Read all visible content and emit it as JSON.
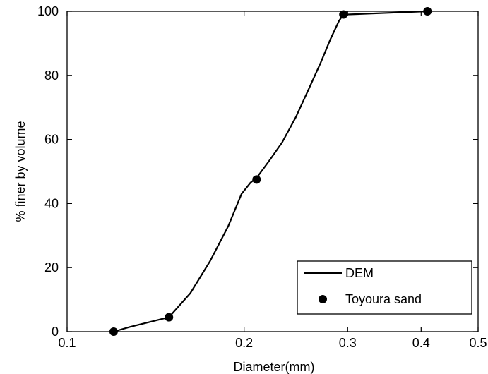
{
  "chart_data": {
    "type": "line",
    "title": "",
    "xlabel": "Diameter(mm)",
    "ylabel": "% finer by volume",
    "xscale": "log",
    "xlim": [
      0.1,
      0.5
    ],
    "ylim": [
      0,
      100
    ],
    "xticks": [
      0.1,
      0.2,
      0.3,
      0.4,
      0.5
    ],
    "xtick_labels": [
      "0.1",
      "0.2",
      "0.3",
      "0.4",
      "0.5"
    ],
    "yticks": [
      0,
      20,
      40,
      60,
      80,
      100
    ],
    "ytick_labels": [
      "0",
      "20",
      "40",
      "60",
      "80",
      "100"
    ],
    "grid": false,
    "legend_position": "bottom-right",
    "series": [
      {
        "name": "DEM",
        "style": "line",
        "color": "#000000",
        "x": [
          0.12,
          0.128,
          0.138,
          0.149,
          0.162,
          0.175,
          0.188,
          0.198,
          0.205,
          0.21,
          0.22,
          0.232,
          0.245,
          0.258,
          0.27,
          0.28,
          0.29,
          0.295,
          0.3,
          0.35,
          0.41
        ],
        "y": [
          0,
          1.5,
          3,
          4.5,
          12,
          22,
          33,
          43,
          46.5,
          48,
          53,
          59,
          67,
          76,
          84,
          91,
          97,
          99,
          99,
          99.5,
          100
        ]
      },
      {
        "name": "Toyoura sand",
        "style": "marker",
        "color": "#000000",
        "x": [
          0.12,
          0.149,
          0.21,
          0.295,
          0.41
        ],
        "y": [
          0,
          4.5,
          47.5,
          99,
          100
        ]
      }
    ]
  }
}
